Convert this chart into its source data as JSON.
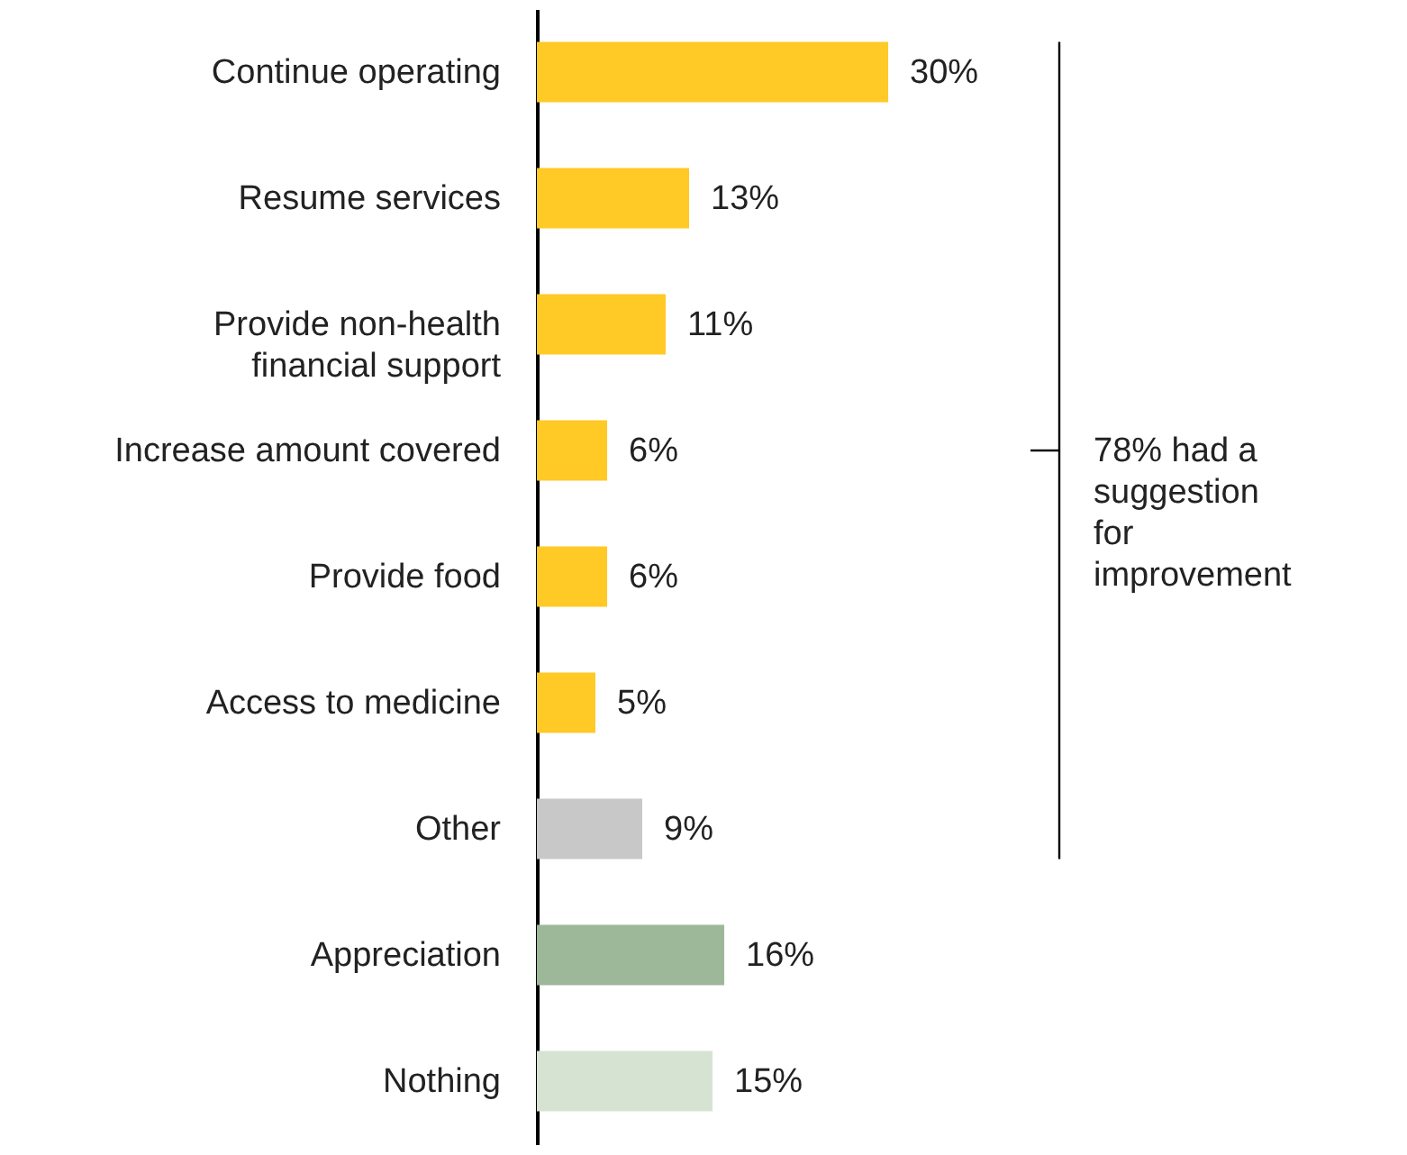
{
  "chart_data": {
    "type": "bar",
    "orientation": "horizontal",
    "categories": [
      "Continue operating",
      "Resume services",
      "Provide non-health financial support",
      "Increase amount covered",
      "Provide food",
      "Access to medicine",
      "Other",
      "Appreciation",
      "Nothing"
    ],
    "values": [
      30,
      13,
      11,
      6,
      6,
      5,
      9,
      16,
      15
    ],
    "colors": [
      "#ffc926",
      "#ffc926",
      "#ffc926",
      "#ffc926",
      "#ffc926",
      "#ffc926",
      "#c8c8c8",
      "#9cb898",
      "#d6e3d3"
    ],
    "value_labels": [
      "30%",
      "13%",
      "11%",
      "6%",
      "6%",
      "5%",
      "9%",
      "16%",
      "15%"
    ],
    "annotations": [
      "78% had a suggestion for improvement"
    ]
  }
}
